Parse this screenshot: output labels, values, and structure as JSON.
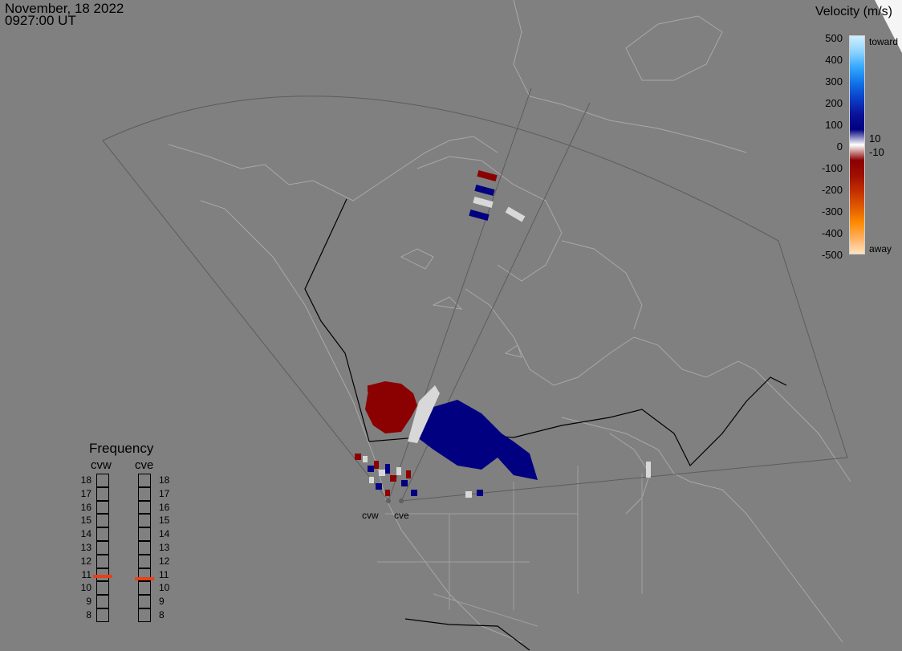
{
  "header": {
    "date": "November, 18 2022",
    "time": "0927:00 UT"
  },
  "velocity_scale": {
    "title": "Velocity (m/s)",
    "ticks": [
      "500",
      "400",
      "300",
      "200",
      "100",
      "0",
      "-100",
      "-200",
      "-300",
      "-400",
      "-500"
    ],
    "toward_label": "toward",
    "away_label": "away",
    "small_ticks": [
      "10",
      "-10"
    ],
    "colors": [
      "#cfefff",
      "#8fd3ff",
      "#35a8ff",
      "#1173e8",
      "#0a3fc8",
      "#0a149a",
      "#000080",
      "#ffffff",
      "#8b0000",
      "#a01000",
      "#c53000",
      "#e05a00",
      "#ff8a00",
      "#ffb060",
      "#ffe2bf"
    ]
  },
  "frequency": {
    "title": "Frequency",
    "radars": [
      "cvw",
      "cve"
    ],
    "scale": [
      "18",
      "17",
      "16",
      "15",
      "14",
      "13",
      "12",
      "11",
      "10",
      "9",
      "8"
    ],
    "current_mhz": [
      10.9,
      10.7
    ],
    "marker_color": "#e8401a"
  },
  "sites": [
    "cvw",
    "cve"
  ],
  "colors": {
    "background": "#808080",
    "coast": "#a8a8a8",
    "border": "#000000",
    "positive_velocity": "#000080",
    "negative_velocity": "#8b0000",
    "ground_scatter": "#d8d8d8"
  }
}
